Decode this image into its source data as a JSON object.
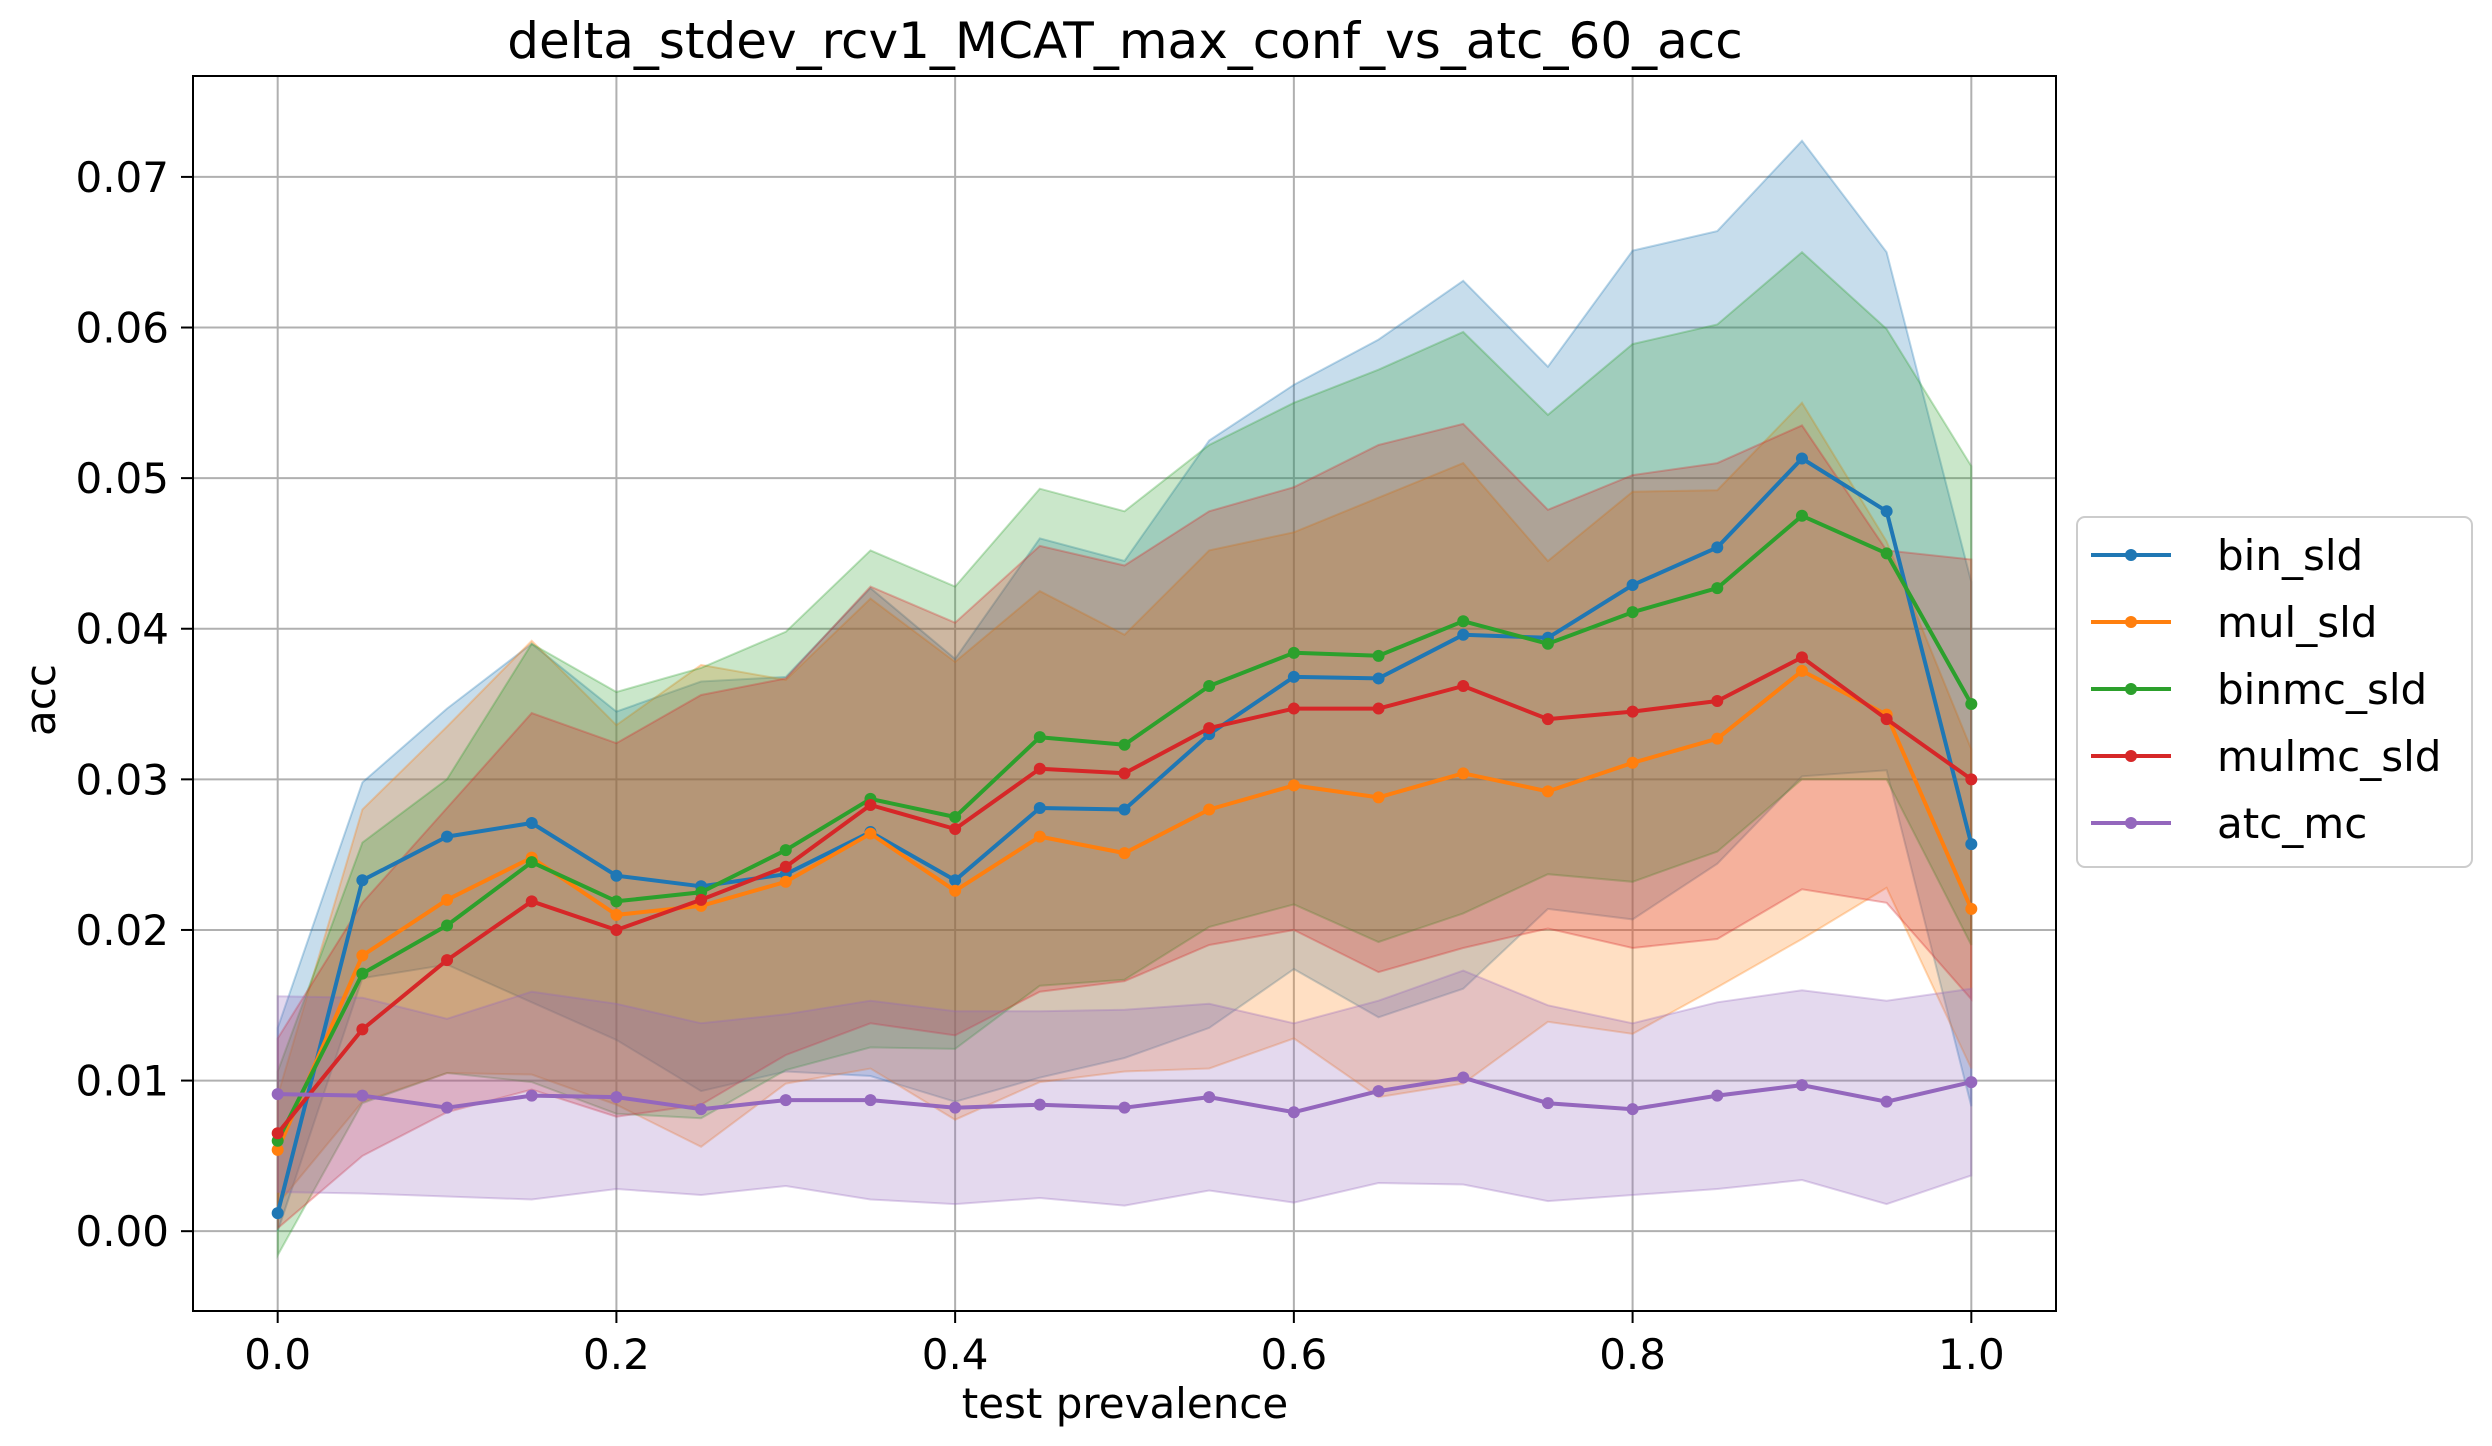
{
  "chart_data": {
    "type": "line",
    "title": "delta_stdev_rcv1_MCAT_max_conf_vs_atc_60_acc",
    "xlabel": "test prevalence",
    "ylabel": "acc",
    "xlim": [
      -0.05,
      1.05
    ],
    "ylim": [
      -0.0053,
      0.0767
    ],
    "xticks": [
      0.0,
      0.2,
      0.4,
      0.6,
      0.8,
      1.0
    ],
    "xtick_labels": [
      "0.0",
      "0.2",
      "0.4",
      "0.6",
      "0.8",
      "1.0"
    ],
    "yticks": [
      0.0,
      0.01,
      0.02,
      0.03,
      0.04,
      0.05,
      0.06,
      0.07
    ],
    "ytick_labels": [
      "0.00",
      "0.01",
      "0.02",
      "0.03",
      "0.04",
      "0.05",
      "0.06",
      "0.07"
    ],
    "grid": true,
    "legend_position": "right, outside plot area",
    "x": [
      0.0,
      0.05,
      0.1,
      0.15,
      0.2,
      0.25,
      0.3,
      0.35,
      0.4,
      0.45,
      0.5,
      0.55,
      0.6,
      0.65,
      0.7,
      0.75,
      0.8,
      0.85,
      0.9,
      0.95,
      1.0
    ],
    "series": [
      {
        "name": "bin_sld",
        "color": "#1f77b4",
        "values": [
          0.0012,
          0.0233,
          0.0262,
          0.0271,
          0.0236,
          0.0229,
          0.0237,
          0.0265,
          0.0233,
          0.0281,
          0.028,
          0.033,
          0.0368,
          0.0367,
          0.0396,
          0.0394,
          0.0429,
          0.0454,
          0.0513,
          0.0478,
          0.0257
        ],
        "upper": [
          0.0135,
          0.0298,
          0.0347,
          0.039,
          0.0345,
          0.0365,
          0.0368,
          0.0427,
          0.038,
          0.046,
          0.0445,
          0.0525,
          0.0562,
          0.0592,
          0.0631,
          0.0574,
          0.0651,
          0.0664,
          0.0724,
          0.065,
          0.0431
        ],
        "lower": [
          0.0,
          0.0168,
          0.0177,
          0.0152,
          0.0127,
          0.0093,
          0.0106,
          0.0103,
          0.0086,
          0.0102,
          0.0115,
          0.0135,
          0.0174,
          0.0142,
          0.0161,
          0.0214,
          0.0207,
          0.0244,
          0.0302,
          0.0306,
          0.0083
        ]
      },
      {
        "name": "mul_sld",
        "color": "#ff7f0e",
        "values": [
          0.0054,
          0.0183,
          0.022,
          0.0248,
          0.021,
          0.0216,
          0.0232,
          0.0264,
          0.0226,
          0.0262,
          0.0251,
          0.028,
          0.0296,
          0.0288,
          0.0304,
          0.0292,
          0.0311,
          0.0327,
          0.0372,
          0.0343,
          0.0214
        ],
        "upper": [
          0.009,
          0.028,
          0.0335,
          0.0392,
          0.0336,
          0.0376,
          0.0366,
          0.042,
          0.0378,
          0.0425,
          0.0396,
          0.0452,
          0.0464,
          0.0487,
          0.051,
          0.0445,
          0.0491,
          0.0492,
          0.055,
          0.0458,
          0.032
        ],
        "lower": [
          0.0018,
          0.0086,
          0.0105,
          0.0104,
          0.0084,
          0.0056,
          0.0098,
          0.0108,
          0.0074,
          0.0099,
          0.0106,
          0.0108,
          0.0128,
          0.0089,
          0.0098,
          0.0139,
          0.0131,
          0.0162,
          0.0194,
          0.0228,
          0.0108
        ]
      },
      {
        "name": "binmc_sld",
        "color": "#2ca02c",
        "values": [
          0.006,
          0.0171,
          0.0203,
          0.0245,
          0.0219,
          0.0225,
          0.0253,
          0.0287,
          0.0275,
          0.0328,
          0.0323,
          0.0362,
          0.0384,
          0.0382,
          0.0405,
          0.039,
          0.0411,
          0.0427,
          0.0475,
          0.045,
          0.035
        ],
        "upper": [
          0.0106,
          0.0258,
          0.03,
          0.039,
          0.0358,
          0.0374,
          0.0398,
          0.0452,
          0.0428,
          0.0493,
          0.0478,
          0.0522,
          0.055,
          0.0572,
          0.0597,
          0.0542,
          0.0589,
          0.0602,
          0.065,
          0.0599,
          0.0508
        ],
        "lower": [
          -0.0016,
          0.0085,
          0.0105,
          0.0099,
          0.0078,
          0.0075,
          0.0107,
          0.0122,
          0.0121,
          0.0163,
          0.0167,
          0.0202,
          0.0217,
          0.0192,
          0.0211,
          0.0237,
          0.0232,
          0.0252,
          0.03,
          0.03,
          0.019
        ]
      },
      {
        "name": "mulmc_sld",
        "color": "#d62728",
        "values": [
          0.0065,
          0.0134,
          0.018,
          0.0219,
          0.02,
          0.022,
          0.0242,
          0.0283,
          0.0267,
          0.0307,
          0.0304,
          0.0334,
          0.0347,
          0.0347,
          0.0362,
          0.034,
          0.0345,
          0.0352,
          0.0381,
          0.034,
          0.03
        ],
        "upper": [
          0.0128,
          0.0218,
          0.0281,
          0.0344,
          0.0324,
          0.0356,
          0.0367,
          0.0428,
          0.0404,
          0.0455,
          0.0442,
          0.0478,
          0.0494,
          0.0522,
          0.0536,
          0.0479,
          0.0502,
          0.051,
          0.0535,
          0.0452,
          0.0446
        ],
        "lower": [
          0.0002,
          0.005,
          0.0079,
          0.0094,
          0.0076,
          0.0084,
          0.0117,
          0.0138,
          0.013,
          0.0159,
          0.0166,
          0.019,
          0.02,
          0.0172,
          0.0188,
          0.0201,
          0.0188,
          0.0194,
          0.0227,
          0.0218,
          0.0154
        ]
      },
      {
        "name": "atc_mc",
        "color": "#9467bd",
        "values": [
          0.0091,
          0.009,
          0.0082,
          0.009,
          0.0089,
          0.0081,
          0.0087,
          0.0087,
          0.0082,
          0.0084,
          0.0082,
          0.0089,
          0.0079,
          0.0093,
          0.0102,
          0.0085,
          0.0081,
          0.009,
          0.0097,
          0.0086,
          0.0099
        ],
        "upper": [
          0.0156,
          0.0155,
          0.0141,
          0.0159,
          0.0151,
          0.0138,
          0.0144,
          0.0153,
          0.0146,
          0.0146,
          0.0147,
          0.0151,
          0.0138,
          0.0153,
          0.0173,
          0.015,
          0.0138,
          0.0152,
          0.016,
          0.0153,
          0.0161
        ],
        "lower": [
          0.0026,
          0.0025,
          0.0023,
          0.0021,
          0.0028,
          0.0024,
          0.003,
          0.0021,
          0.0018,
          0.0022,
          0.0017,
          0.0027,
          0.0019,
          0.0032,
          0.0031,
          0.002,
          0.0024,
          0.0028,
          0.0034,
          0.0018,
          0.0037
        ]
      }
    ]
  }
}
